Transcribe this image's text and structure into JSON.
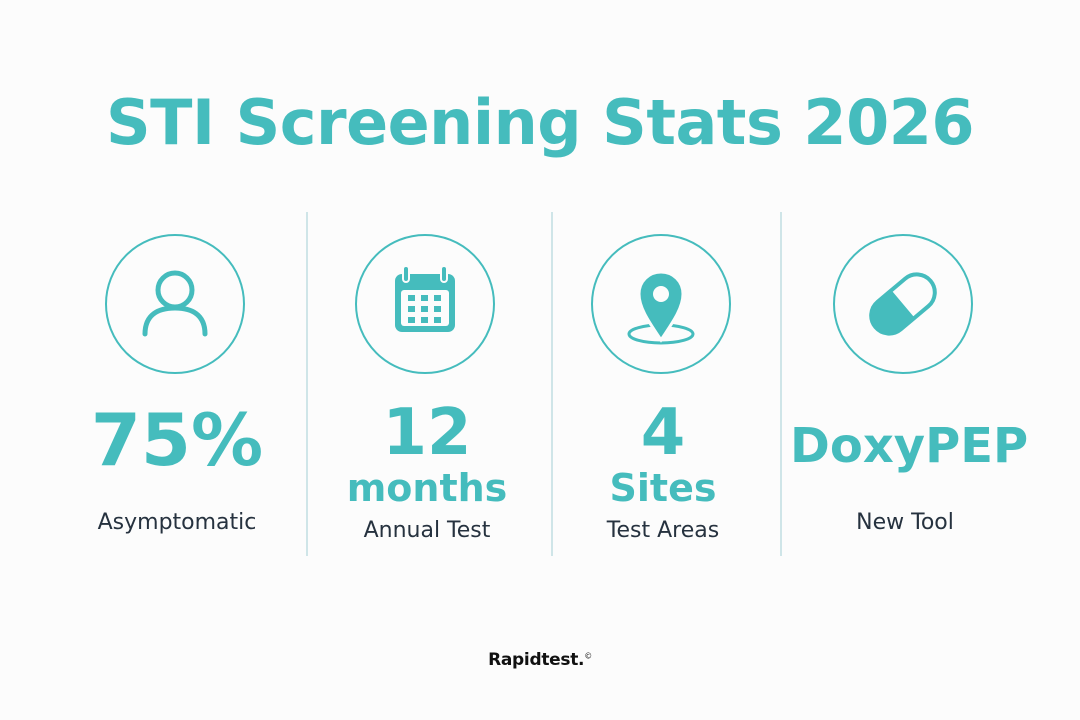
{
  "title": "STI Screening Stats 2026",
  "accent_color": "#45bcbd",
  "text_color": "#26323f",
  "stats": [
    {
      "icon": "person-icon",
      "value": "75%",
      "sub": "",
      "label": "Asymptomatic"
    },
    {
      "icon": "calendar-icon",
      "value": "12",
      "sub": "months",
      "label": "Annual Test"
    },
    {
      "icon": "location-pin-icon",
      "value": "4",
      "sub": "Sites",
      "label": "Test Areas"
    },
    {
      "icon": "pill-capsule-icon",
      "value": "DoxyPEP",
      "sub": "",
      "label": "New Tool"
    }
  ],
  "brand": {
    "name": "Rapidtest.",
    "mark": "©"
  }
}
